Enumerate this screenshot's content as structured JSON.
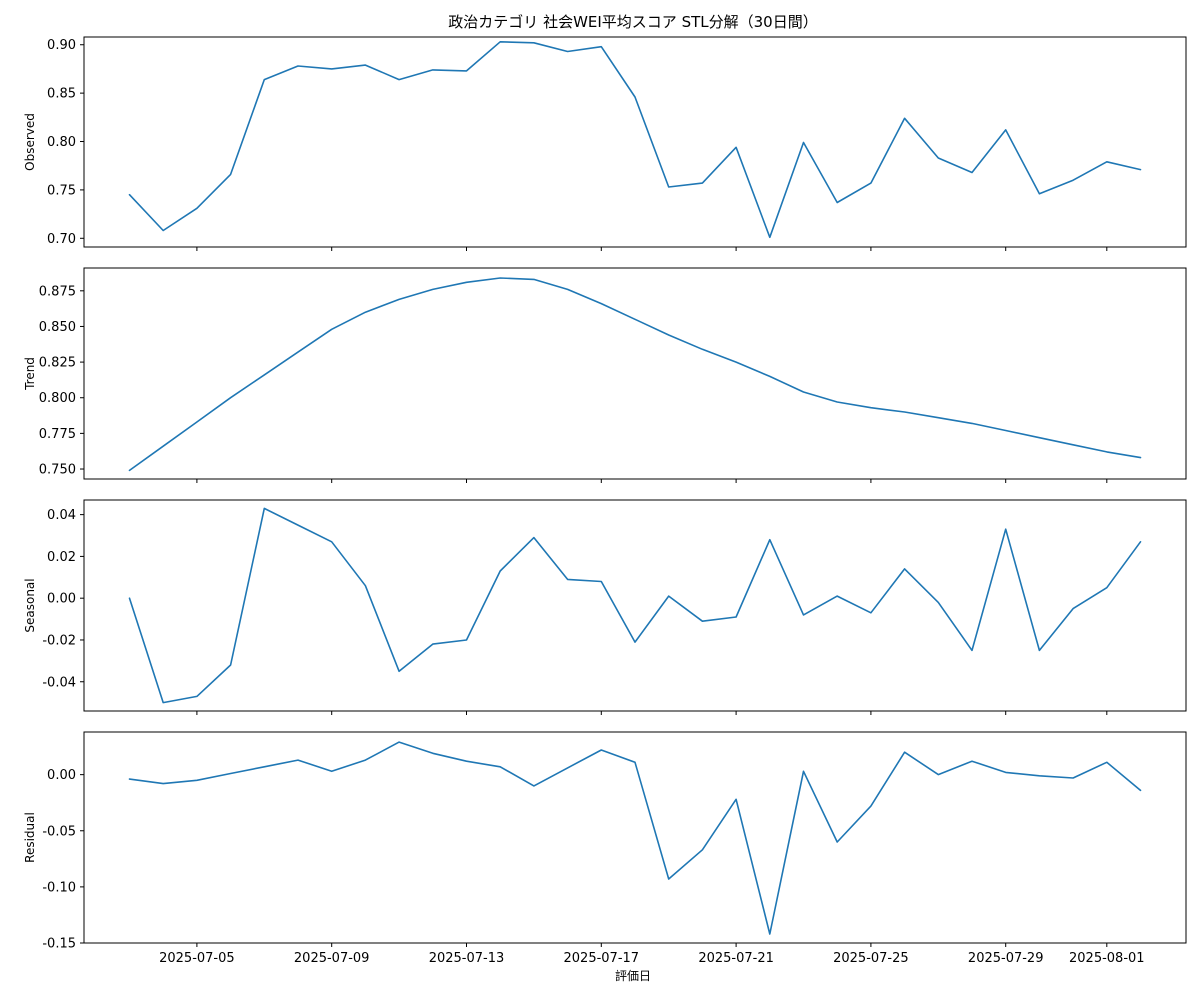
{
  "chart_data": {
    "type": "line",
    "title": "政治カテゴリ 社会WEI平均スコア STL分解（30日間）",
    "xlabel": "評価日",
    "x": [
      "2025-07-03",
      "2025-07-04",
      "2025-07-05",
      "2025-07-06",
      "2025-07-07",
      "2025-07-08",
      "2025-07-09",
      "2025-07-10",
      "2025-07-11",
      "2025-07-12",
      "2025-07-13",
      "2025-07-14",
      "2025-07-15",
      "2025-07-16",
      "2025-07-17",
      "2025-07-18",
      "2025-07-19",
      "2025-07-20",
      "2025-07-21",
      "2025-07-22",
      "2025-07-23",
      "2025-07-24",
      "2025-07-25",
      "2025-07-26",
      "2025-07-27",
      "2025-07-28",
      "2025-07-29",
      "2025-07-30",
      "2025-07-31",
      "2025-08-01",
      "2025-08-02"
    ],
    "xtick_labels": [
      "2025-07-05",
      "2025-07-09",
      "2025-07-13",
      "2025-07-17",
      "2025-07-21",
      "2025-07-25",
      "2025-07-29",
      "2025-08-01"
    ],
    "line_color": "#1f77b4",
    "grid": false,
    "panels": [
      {
        "ylabel": "Observed",
        "ylim": [
          0.691,
          0.908
        ],
        "yticks": [
          "0.70",
          "0.75",
          "0.80",
          "0.85",
          "0.90"
        ],
        "values": [
          0.745,
          0.708,
          0.731,
          0.766,
          0.864,
          0.878,
          0.875,
          0.879,
          0.864,
          0.874,
          0.873,
          0.903,
          0.902,
          0.893,
          0.898,
          0.846,
          0.753,
          0.757,
          0.794,
          0.701,
          0.799,
          0.737,
          0.757,
          0.824,
          0.783,
          0.768,
          0.812,
          0.746,
          0.76,
          0.779,
          0.771
        ]
      },
      {
        "ylabel": "Trend",
        "ylim": [
          0.743,
          0.891
        ],
        "yticks": [
          "0.750",
          "0.775",
          "0.800",
          "0.825",
          "0.850",
          "0.875"
        ],
        "values": [
          0.749,
          0.766,
          0.783,
          0.8,
          0.816,
          0.832,
          0.848,
          0.86,
          0.869,
          0.876,
          0.881,
          0.884,
          0.883,
          0.876,
          0.866,
          0.855,
          0.844,
          0.834,
          0.825,
          0.815,
          0.804,
          0.797,
          0.793,
          0.79,
          0.786,
          0.782,
          0.777,
          0.772,
          0.767,
          0.762,
          0.758
        ]
      },
      {
        "ylabel": "Seasonal",
        "ylim": [
          -0.054,
          0.047
        ],
        "yticks": [
          "0.04",
          "0.02",
          "0.00",
          "-0.02",
          "-0.04"
        ],
        "values": [
          0.0,
          -0.05,
          -0.047,
          -0.032,
          0.043,
          0.035,
          0.027,
          0.006,
          -0.035,
          -0.022,
          -0.02,
          0.013,
          0.029,
          0.009,
          0.008,
          -0.021,
          0.001,
          -0.011,
          -0.009,
          0.028,
          -0.008,
          0.001,
          -0.007,
          0.014,
          -0.002,
          -0.025,
          0.033,
          -0.025,
          -0.005,
          0.005,
          0.027
        ]
      },
      {
        "ylabel": "Residual",
        "ylim": [
          -0.15,
          0.038
        ],
        "yticks": [
          "0.00",
          "-0.05",
          "-0.10",
          "-0.15"
        ],
        "values": [
          -0.004,
          -0.008,
          -0.005,
          0.001,
          0.007,
          0.013,
          0.003,
          0.013,
          0.029,
          0.019,
          0.012,
          0.007,
          -0.01,
          0.006,
          0.022,
          0.011,
          -0.093,
          -0.067,
          -0.022,
          -0.142,
          0.003,
          -0.06,
          -0.028,
          0.02,
          0.0,
          0.012,
          0.002,
          -0.001,
          -0.003,
          0.011,
          -0.014
        ]
      }
    ]
  }
}
